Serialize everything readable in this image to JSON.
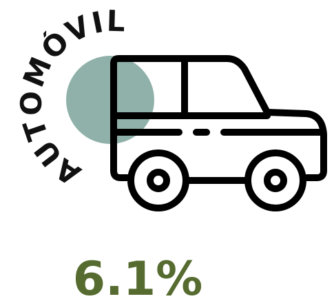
{
  "title": "AUTOMÓVIL",
  "stat": "6.1%"
}
